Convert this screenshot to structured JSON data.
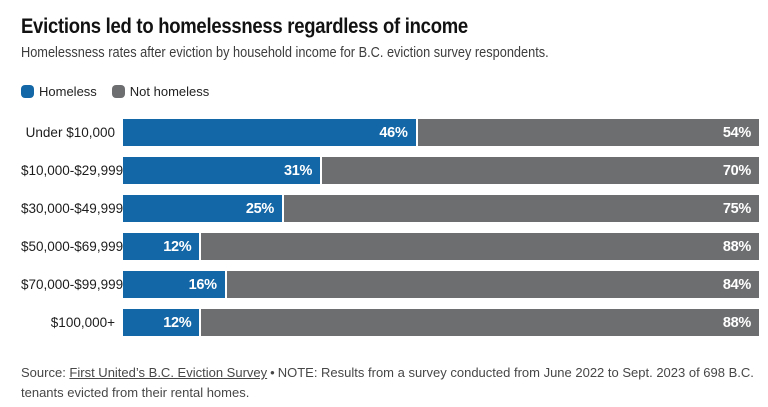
{
  "header": {
    "title": "Evictions led to homelessness regardless of income",
    "subtitle": "Homelessness rates after eviction by household income for B.C. eviction survey respondents."
  },
  "legend": {
    "items": [
      {
        "label": "Homeless",
        "color": "#1467a6"
      },
      {
        "label": "Not homeless",
        "color": "#6d6e70"
      }
    ]
  },
  "chart_data": {
    "type": "bar",
    "orientation": "horizontal",
    "stacked": true,
    "unit": "%",
    "xlim": [
      0,
      100
    ],
    "grid": false,
    "legend_position": "top-left",
    "value_labels": "inside-end",
    "categories": [
      "Under $10,000",
      "$10,000-$29,999",
      "$30,000-$49,999",
      "$50,000-$69,999",
      "$70,000-$99,999",
      "$100,000+"
    ],
    "series": [
      {
        "name": "Homeless",
        "color": "#1467a6",
        "values": [
          46,
          31,
          25,
          12,
          16,
          12
        ]
      },
      {
        "name": "Not homeless",
        "color": "#6d6e70",
        "values": [
          54,
          70,
          75,
          88,
          84,
          88
        ]
      }
    ]
  },
  "footer": {
    "source_prefix": "Source: ",
    "source_link": "First United’s B.C. Eviction Survey",
    "separator": "•",
    "note": "NOTE: Results from a survey conducted from June 2022 to Sept. 2023 of 698 B.C. tenants evicted from their rental homes."
  },
  "colors": {
    "homeless": "#1467a6",
    "not_homeless": "#6d6e70",
    "background": "#ffffff"
  }
}
